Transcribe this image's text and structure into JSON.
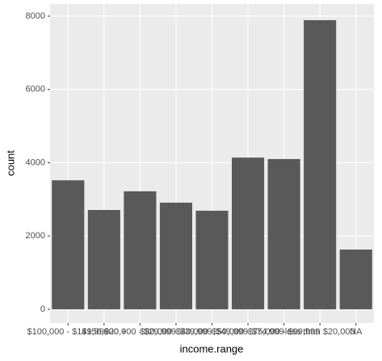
{
  "chart_data": {
    "type": "bar",
    "xlabel": "income.range",
    "ylabel": "count",
    "categories": [
      "$100,000 - $149,999",
      "$150,000 +",
      "$20,000 - $29,999",
      "$30,000 - $39,999",
      "$40,000 - $49,999",
      "$50,000 - $74,999",
      "$75,000 - $99,999",
      "less than $20,000",
      "NA"
    ],
    "values": [
      3520,
      2710,
      3220,
      2910,
      2690,
      4140,
      4100,
      7890,
      1630
    ],
    "color": "#595959",
    "ylim": [
      -375,
      8330
    ],
    "yticks": [
      0,
      2000,
      4000,
      6000,
      8000
    ],
    "grid": true
  }
}
